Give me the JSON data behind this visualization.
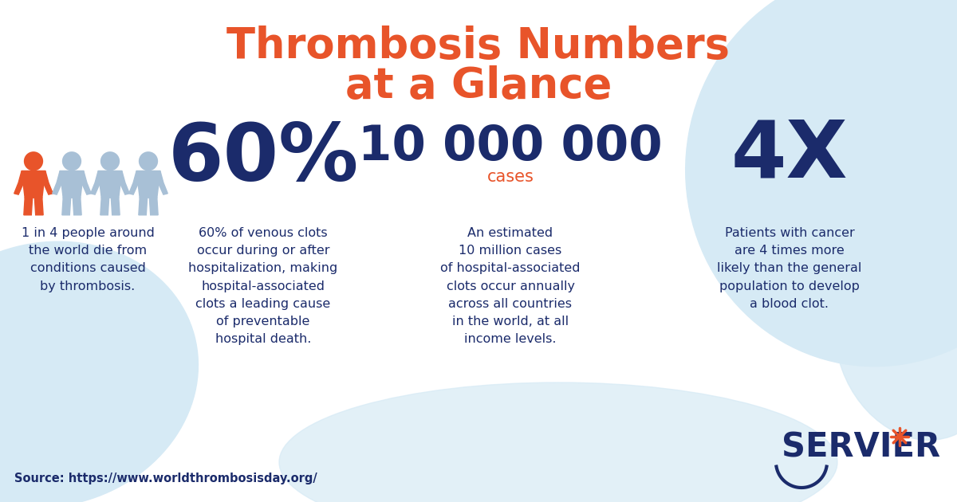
{
  "title_line1": "Thrombosis Numbers",
  "title_line2": "at a Glance",
  "title_color": "#E8542A",
  "bg_color": "#ffffff",
  "bg_blob_color": "#D6EAF5",
  "dark_blue": "#1B2B6B",
  "orange_red": "#E8542A",
  "light_blue_icon": "#A8C0D6",
  "stat1_icon_label": "1 in 4 people around\nthe world die from\nconditions caused\nby thrombosis.",
  "stat2_number": "60%",
  "stat2_label": "60% of venous clots\noccur during or after\nhospitalization, making\nhospital-associated\nclots a leading cause\nof preventable\nhospital death.",
  "stat3_number": "10 000 000",
  "stat3_sublabel": "cases",
  "stat3_label": "An estimated\n10 million cases\nof hospital-associated\nclots occur annually\nacross all countries\nin the world, at all\nincome levels.",
  "stat4_number": "4X",
  "stat4_label": "Patients with cancer\nare 4 times more\nlikely than the general\npopulation to develop\na blood clot.",
  "source_text": "Source: https://www.worldthrombosisday.org/",
  "servier_text": "SERVIER",
  "figsize": [
    12.0,
    6.3
  ],
  "dpi": 100
}
